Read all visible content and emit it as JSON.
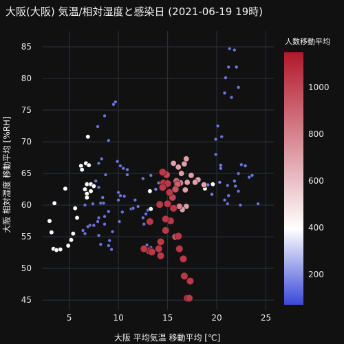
{
  "chart_data": {
    "type": "scatter",
    "title": "大阪(大阪) 気温/相対湿度と感染日 (2021-06-19 19時)",
    "xlabel": "大阪 平均気温 移動平均 [℃]",
    "ylabel": "大阪 相対湿度 移動平均 [%RH]",
    "xlim": [
      2.3,
      25.8
    ],
    "ylim": [
      43.5,
      87.5
    ],
    "xticks": [
      5,
      10,
      15,
      20,
      25
    ],
    "yticks": [
      45,
      50,
      55,
      60,
      65,
      70,
      75,
      80,
      85
    ],
    "grid": true,
    "colorbar": {
      "title": "人数移動平均",
      "range": [
        70,
        1150
      ],
      "ticks": [
        200,
        400,
        600,
        800,
        1000
      ],
      "colorscale": [
        "#3a48d8",
        "#ffffff",
        "#b2182b"
      ]
    },
    "points": [
      [
        21.3,
        84.7,
        150
      ],
      [
        21.8,
        84.5,
        150
      ],
      [
        22.0,
        81.8,
        160
      ],
      [
        21.2,
        81.8,
        150
      ],
      [
        20.9,
        80.1,
        160
      ],
      [
        22.2,
        78.6,
        150
      ],
      [
        20.8,
        77.7,
        160
      ],
      [
        21.5,
        77.0,
        150
      ],
      [
        20.1,
        72.5,
        150
      ],
      [
        20.5,
        70.8,
        150
      ],
      [
        19.9,
        70.4,
        160
      ],
      [
        19.9,
        68.0,
        150
      ],
      [
        20.4,
        66.3,
        160
      ],
      [
        22.5,
        66.4,
        150
      ],
      [
        22.9,
        66.2,
        160
      ],
      [
        20.4,
        65.8,
        160
      ],
      [
        22.2,
        65.0,
        150
      ],
      [
        23.6,
        64.7,
        150
      ],
      [
        23.3,
        64.4,
        150
      ],
      [
        21.8,
        63.8,
        160
      ],
      [
        21.9,
        63.0,
        150
      ],
      [
        21.1,
        63.1,
        150
      ],
      [
        22.2,
        62.2,
        150
      ],
      [
        19.6,
        63.3,
        400
      ],
      [
        20.3,
        63.6,
        170
      ],
      [
        21.2,
        61.5,
        150
      ],
      [
        20.8,
        60.8,
        150
      ],
      [
        21.1,
        60.2,
        150
      ],
      [
        22.4,
        60.0,
        150
      ],
      [
        24.2,
        60.2,
        150
      ],
      [
        9.7,
        76.3,
        150
      ],
      [
        9.5,
        75.9,
        150
      ],
      [
        8.6,
        74.1,
        150
      ],
      [
        7.9,
        72.4,
        150
      ],
      [
        6.9,
        70.8,
        400
      ],
      [
        9.0,
        70.2,
        150
      ],
      [
        8.3,
        67.3,
        150
      ],
      [
        8.0,
        66.6,
        150
      ],
      [
        6.7,
        66.6,
        400
      ],
      [
        7.0,
        66.3,
        400
      ],
      [
        6.2,
        66.2,
        400
      ],
      [
        9.9,
        66.9,
        150
      ],
      [
        10.2,
        66.2,
        150
      ],
      [
        10.5,
        65.8,
        150
      ],
      [
        10.9,
        65.6,
        150
      ],
      [
        10.9,
        64.8,
        150
      ],
      [
        8.7,
        64.8,
        150
      ],
      [
        7.7,
        63.8,
        150
      ],
      [
        6.8,
        63.3,
        400
      ],
      [
        7.2,
        63.3,
        400
      ],
      [
        7.5,
        63.0,
        400
      ],
      [
        7.2,
        62.2,
        400
      ],
      [
        6.6,
        62.5,
        400
      ],
      [
        6.8,
        61.8,
        400
      ],
      [
        6.8,
        61.2,
        400
      ],
      [
        4.6,
        62.6,
        400
      ],
      [
        8.0,
        62.8,
        150
      ],
      [
        8.4,
        61.2,
        150
      ],
      [
        10.0,
        62.0,
        150
      ],
      [
        10.6,
        61.4,
        150
      ],
      [
        10.2,
        61.5,
        150
      ],
      [
        10.0,
        60.8,
        150
      ],
      [
        11.7,
        60.8,
        150
      ],
      [
        13.2,
        62.2,
        400
      ],
      [
        13.8,
        62.5,
        170
      ],
      [
        14.1,
        63.5,
        160
      ],
      [
        12.5,
        64.2,
        150
      ],
      [
        13.3,
        64.7,
        150
      ],
      [
        7.4,
        60.2,
        150
      ],
      [
        6.6,
        60.0,
        150
      ],
      [
        8.5,
        60.3,
        150
      ],
      [
        8.2,
        60.3,
        150
      ],
      [
        9.0,
        59.0,
        150
      ],
      [
        8.6,
        58.2,
        150
      ],
      [
        8.0,
        58.0,
        150
      ],
      [
        7.9,
        57.4,
        150
      ],
      [
        8.6,
        57.0,
        150
      ],
      [
        7.5,
        56.8,
        150
      ],
      [
        7.1,
        56.8,
        150
      ],
      [
        6.9,
        56.6,
        150
      ],
      [
        6.4,
        56.0,
        150
      ],
      [
        6.6,
        55.5,
        150
      ],
      [
        8.0,
        55.2,
        150
      ],
      [
        9.4,
        55.8,
        150
      ],
      [
        9.1,
        54.4,
        150
      ],
      [
        9.0,
        53.6,
        150
      ],
      [
        9.3,
        53.0,
        150
      ],
      [
        8.2,
        53.8,
        150
      ],
      [
        10.1,
        57.4,
        150
      ],
      [
        10.4,
        58.9,
        150
      ],
      [
        11.3,
        59.4,
        150
      ],
      [
        11.5,
        59.5,
        150
      ],
      [
        12.0,
        59.8,
        150
      ],
      [
        12.5,
        58.0,
        150
      ],
      [
        12.8,
        58.6,
        150
      ],
      [
        13.0,
        59.2,
        150
      ],
      [
        13.3,
        59.4,
        400
      ],
      [
        12.9,
        53.7,
        150
      ],
      [
        13.3,
        53.3,
        150
      ],
      [
        12.6,
        57.0,
        150
      ],
      [
        5.6,
        59.5,
        400
      ],
      [
        5.8,
        58.0,
        400
      ],
      [
        5.4,
        55.5,
        400
      ],
      [
        5.2,
        54.5,
        400
      ],
      [
        4.9,
        53.6,
        400
      ],
      [
        3.0,
        57.5,
        400
      ],
      [
        3.2,
        55.7,
        400
      ],
      [
        3.4,
        53.1,
        400
      ],
      [
        3.7,
        52.9,
        400
      ],
      [
        4.1,
        53.0,
        400
      ],
      [
        3.5,
        60.3,
        400
      ],
      [
        6.3,
        65.6,
        400
      ],
      [
        19.5,
        61.7,
        170
      ],
      [
        14.5,
        65.2,
        1050
      ],
      [
        14.9,
        64.8,
        1000
      ],
      [
        14.6,
        63.5,
        1050
      ],
      [
        15.0,
        63.4,
        1050
      ],
      [
        14.5,
        62.8,
        1050
      ],
      [
        15.2,
        62.0,
        1050
      ],
      [
        15.9,
        63.8,
        900
      ],
      [
        16.0,
        63.3,
        900
      ],
      [
        15.8,
        62.5,
        950
      ],
      [
        16.3,
        63.5,
        800
      ],
      [
        16.4,
        65.0,
        700
      ],
      [
        16.7,
        66.5,
        700
      ],
      [
        16.9,
        67.3,
        700
      ],
      [
        15.6,
        66.6,
        700
      ],
      [
        16.1,
        66.0,
        700
      ],
      [
        17.4,
        64.7,
        700
      ],
      [
        17.0,
        63.6,
        700
      ],
      [
        18.1,
        64.0,
        700
      ],
      [
        17.8,
        63.6,
        700
      ],
      [
        16.8,
        62.4,
        700
      ],
      [
        15.5,
        61.2,
        1000
      ],
      [
        15.0,
        60.2,
        1050
      ],
      [
        14.2,
        60.1,
        1050
      ],
      [
        15.6,
        59.5,
        1050
      ],
      [
        16.2,
        59.8,
        800
      ],
      [
        16.9,
        59.8,
        700
      ],
      [
        16.5,
        59.3,
        700
      ],
      [
        15.3,
        57.5,
        1050
      ],
      [
        14.8,
        57.8,
        1050
      ],
      [
        14.8,
        56.0,
        1050
      ],
      [
        15.8,
        55.0,
        950
      ],
      [
        16.1,
        55.1,
        1050
      ],
      [
        16.2,
        53.1,
        1050
      ],
      [
        14.3,
        54.2,
        1050
      ],
      [
        14.1,
        53.1,
        1050
      ],
      [
        14.3,
        52.0,
        1050
      ],
      [
        13.1,
        52.8,
        1050
      ],
      [
        12.6,
        53.1,
        1050
      ],
      [
        13.4,
        52.6,
        1050
      ],
      [
        16.6,
        51.5,
        1050
      ],
      [
        16.7,
        48.8,
        1050
      ],
      [
        17.3,
        48.0,
        1050
      ],
      [
        17.0,
        45.3,
        1050
      ],
      [
        17.2,
        45.3,
        1050
      ],
      [
        13.2,
        57.4,
        1050
      ],
      [
        18.7,
        63.2,
        700
      ],
      [
        18.8,
        62.6,
        400
      ],
      [
        19.1,
        63.2,
        170
      ]
    ]
  }
}
